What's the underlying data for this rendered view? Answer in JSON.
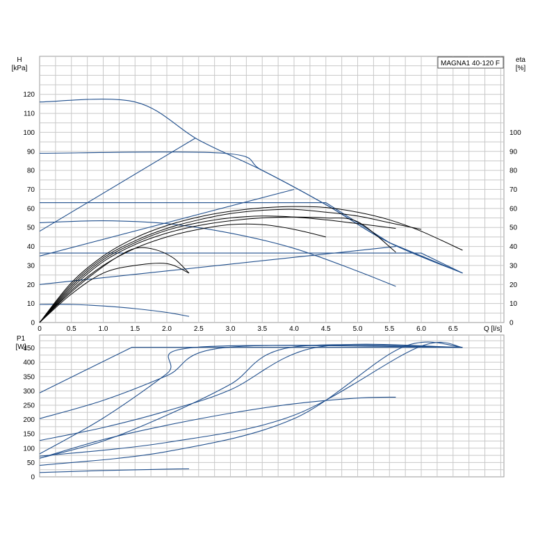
{
  "chart_data": [
    {
      "type": "line",
      "title": "MAGNA1 40-120 F",
      "xlabel": "Q [l/s]",
      "ylabel": "H\n[kPa]",
      "y2label": "eta\n[%]",
      "xlim": [
        0,
        7.3
      ],
      "ylim": [
        0,
        140
      ],
      "y2lim": [
        0,
        140
      ],
      "xticks": [
        "0",
        "0.5",
        "1.0",
        "1.5",
        "2.0",
        "2.5",
        "3.0",
        "3.5",
        "4.0",
        "4.5",
        "5.0",
        "5.5",
        "6.0",
        "6.5"
      ],
      "yticks": [
        "0",
        "10",
        "20",
        "30",
        "40",
        "50",
        "60",
        "70",
        "80",
        "90",
        "100",
        "110",
        "120"
      ],
      "y2ticks": [
        "0",
        "10",
        "20",
        "30",
        "40",
        "50",
        "60",
        "70",
        "80",
        "90",
        "100"
      ],
      "grid": true,
      "head_series": [
        {
          "color": "#1f4e8c",
          "x": [
            0,
            1.5,
            2.5,
            3.5,
            4.5,
            5.5,
            6.65
          ],
          "y": [
            116,
            116,
            96,
            80,
            62,
            42,
            26
          ]
        },
        {
          "color": "#1f4e8c",
          "x": [
            0,
            2.9,
            3.5,
            4.5,
            5.5,
            6.65
          ],
          "y": [
            89,
            89,
            80,
            62,
            42,
            26
          ]
        },
        {
          "color": "#1f4e8c",
          "x": [
            0,
            4.5,
            5.5,
            6.65
          ],
          "y": [
            63,
            63,
            42,
            26
          ]
        },
        {
          "color": "#1f4e8c",
          "x": [
            0,
            6.0,
            6.65
          ],
          "y": [
            36.5,
            36.5,
            26
          ]
        },
        {
          "color": "#1f4e8c",
          "x": [
            0,
            1.0,
            2.0,
            3.0,
            4.0,
            5.0,
            5.6
          ],
          "y": [
            52.5,
            53.5,
            52,
            47,
            39,
            27,
            19
          ]
        },
        {
          "color": "#1f4e8c",
          "x": [
            0,
            0.5,
            1.0,
            1.5,
            2.0,
            2.35
          ],
          "y": [
            9.5,
            9.5,
            8.7,
            7.3,
            5.3,
            3.2
          ]
        },
        {
          "color": "#1f4e8c",
          "x": [
            0,
            2.45
          ],
          "y": [
            48,
            97
          ]
        },
        {
          "color": "#1f4e8c",
          "x": [
            0,
            4.0
          ],
          "y": [
            35,
            70
          ]
        },
        {
          "color": "#1f4e8c",
          "x": [
            0,
            5.6
          ],
          "y": [
            20,
            40
          ]
        }
      ],
      "eta_series": [
        {
          "color": "#000000",
          "x": [
            0,
            0.5,
            1.0,
            1.5,
            2.0,
            2.5,
            3.0,
            3.5,
            4.0,
            4.5,
            5.0,
            5.5,
            6.0,
            6.65
          ],
          "y": [
            0,
            21,
            35,
            44.5,
            51,
            55.5,
            58.5,
            60.3,
            61,
            60.5,
            58,
            54,
            48,
            38
          ]
        },
        {
          "color": "#000000",
          "x": [
            0,
            0.5,
            1.0,
            1.5,
            2.0,
            2.5,
            3.0,
            3.5,
            4.0,
            4.5,
            5.0,
            5.5,
            6.0
          ],
          "y": [
            0,
            20,
            34,
            43,
            49.5,
            54,
            57.3,
            59,
            59.5,
            58,
            56,
            52.5,
            49
          ]
        },
        {
          "color": "#000000",
          "x": [
            0,
            0.5,
            1.0,
            1.5,
            2.0,
            2.5,
            3.0,
            3.5,
            4.0,
            4.5,
            5.0,
            5.6
          ],
          "y": [
            0,
            19,
            33,
            42,
            48.5,
            52.5,
            55,
            56,
            55.5,
            54,
            52,
            49.5
          ]
        },
        {
          "color": "#000000",
          "x": [
            0,
            0.5,
            1.0,
            1.5,
            2.0,
            2.5,
            3.0,
            3.5,
            4.0,
            4.5,
            5.0,
            5.6
          ],
          "y": [
            0,
            18,
            32,
            41,
            47,
            51,
            53.5,
            55,
            55.5,
            55,
            53,
            37
          ]
        },
        {
          "color": "#000000",
          "x": [
            0,
            0.5,
            1.0,
            1.5,
            2.0,
            2.5,
            3.0,
            3.5,
            4.0,
            4.5
          ],
          "y": [
            0,
            17,
            30,
            39,
            45,
            49,
            51.5,
            51.5,
            49,
            45
          ]
        },
        {
          "color": "#000000",
          "x": [
            0,
            0.5,
            1.0,
            1.5,
            2.0,
            2.35
          ],
          "y": [
            0,
            15,
            26,
            30,
            31,
            26
          ]
        },
        {
          "color": "#000000",
          "x": [
            0,
            0.3,
            0.6,
            0.9,
            1.2,
            1.5,
            1.8,
            2.1,
            2.35
          ],
          "y": [
            0,
            10,
            19,
            27,
            34,
            39,
            38.5,
            34,
            26
          ]
        }
      ]
    },
    {
      "type": "line",
      "xlabel": "",
      "ylabel": "P1\n[W]",
      "xlim": [
        0,
        7.3
      ],
      "ylim": [
        0,
        495
      ],
      "yticks": [
        "0",
        "50",
        "100",
        "150",
        "200",
        "250",
        "300",
        "350",
        "400",
        "450"
      ],
      "grid": true,
      "series": [
        {
          "color": "#1f4e8c",
          "x": [
            0,
            0.7,
            1.45,
            6.65
          ],
          "y": [
            293,
            370,
            452,
            452
          ]
        },
        {
          "color": "#1f4e8c",
          "x": [
            0,
            1.0,
            2.0,
            2.95,
            6.65
          ],
          "y": [
            203,
            267,
            353,
            452,
            452
          ]
        },
        {
          "color": "#1f4e8c",
          "x": [
            0,
            1.0,
            2.0,
            3.0,
            4.35,
            6.65
          ],
          "y": [
            127,
            172,
            230,
            304,
            452,
            452
          ]
        },
        {
          "color": "#1f4e8c",
          "x": [
            0,
            2.0,
            4.0,
            5.95,
            6.65
          ],
          "y": [
            72,
            120,
            215,
            452,
            452
          ]
        },
        {
          "color": "#1f4e8c",
          "x": [
            0,
            1.0,
            2.0,
            2.45,
            6.65
          ],
          "y": [
            80,
            205,
            360,
            452,
            452
          ]
        },
        {
          "color": "#1f4e8c",
          "x": [
            0,
            1.0,
            2.0,
            3.0,
            3.95,
            6.65
          ],
          "y": [
            65,
            125,
            215,
            323,
            452,
            452
          ]
        },
        {
          "color": "#1f4e8c",
          "x": [
            0,
            2.0,
            4.0,
            5.7,
            6.65
          ],
          "y": [
            40,
            88,
            203,
            452,
            452
          ]
        },
        {
          "color": "#1f4e8c",
          "x": [
            0,
            1.0,
            2.0,
            3.0,
            4.0,
            5.0,
            5.6
          ],
          "y": [
            65,
            130,
            180,
            222,
            255,
            275,
            278
          ]
        },
        {
          "color": "#1f4e8c",
          "x": [
            0,
            1.0,
            2.0,
            2.35
          ],
          "y": [
            15,
            22,
            27,
            28
          ]
        }
      ]
    }
  ]
}
